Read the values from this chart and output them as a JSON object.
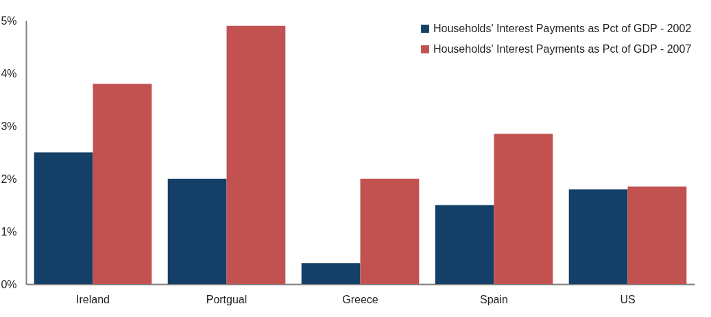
{
  "chart_data": {
    "type": "bar",
    "categories": [
      "Ireland",
      "Portgual",
      "Greece",
      "Spain",
      "US"
    ],
    "series": [
      {
        "name": "Households' Interest Payments as Pct of GDP - 2002",
        "color": "#143f66",
        "values": [
          2.5,
          2.0,
          0.4,
          1.5,
          1.8
        ]
      },
      {
        "name": "Households' Interest Payments as Pct of GDP - 2007",
        "color": "#c25250",
        "values": [
          3.8,
          4.9,
          2.0,
          2.85,
          1.85
        ]
      }
    ],
    "ylim": [
      0,
      5
    ],
    "yticks": [
      {
        "value": 0,
        "label": "0%"
      },
      {
        "value": 1,
        "label": "1%"
      },
      {
        "value": 2,
        "label": "2%"
      },
      {
        "value": 3,
        "label": "3%"
      },
      {
        "value": 4,
        "label": "4%"
      },
      {
        "value": 5,
        "label": "5%"
      }
    ],
    "grid": false,
    "legend": "top right"
  }
}
